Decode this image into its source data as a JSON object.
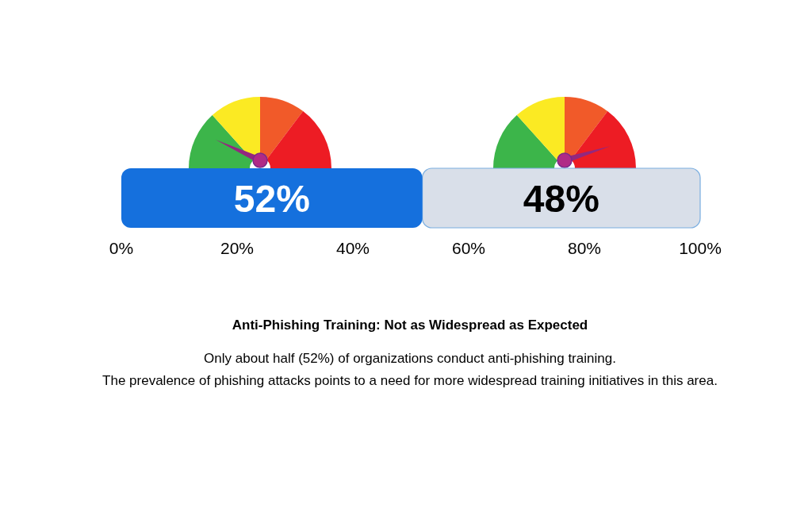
{
  "chart_data": {
    "type": "bar",
    "orientation": "horizontal",
    "stacked": true,
    "title": "Anti-Phishing Training: Not as Widespread as Expected",
    "annotations": [
      "Only about half (52%) of organizations conduct anti-phishing training.",
      "The prevalence of phishing attacks points to a need for more widespread training initiatives in this area."
    ],
    "categories": [
      null
    ],
    "series": [
      {
        "color": "#1570dd",
        "values": [
          52
        ],
        "value_labels": [
          "52%"
        ]
      },
      {
        "color": "#d9dfe9",
        "values": [
          48
        ],
        "value_labels": [
          "48%"
        ]
      }
    ],
    "xlim": [
      0,
      100
    ],
    "xticks": [
      {
        "value": 0,
        "label": "0%"
      },
      {
        "value": 20,
        "label": "20%"
      },
      {
        "value": 40,
        "label": "40%"
      },
      {
        "value": 60,
        "label": "60%"
      },
      {
        "value": 80,
        "label": "80%"
      },
      {
        "value": 100,
        "label": "100%"
      }
    ],
    "tick_labels": "x",
    "grid": false
  }
}
